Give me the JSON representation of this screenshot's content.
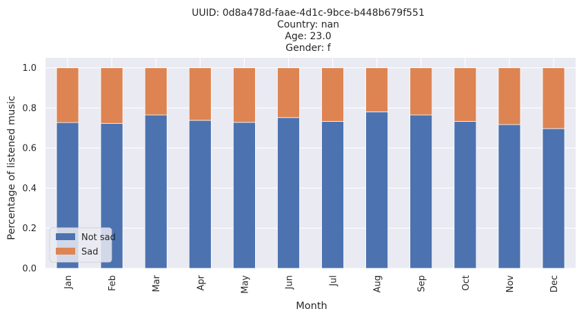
{
  "chart_data": {
    "type": "bar",
    "stacked": true,
    "title_lines": [
      "UUID: 0d8a478d-faae-4d1c-9bce-b448b679f551",
      "Country: nan",
      "Age: 23.0",
      "Gender: f"
    ],
    "xlabel": "Month",
    "ylabel": "Percentage of listened music",
    "categories": [
      "Jan",
      "Feb",
      "Mar",
      "Apr",
      "May",
      "Jun",
      "Jul",
      "Aug",
      "Sep",
      "Oct",
      "Nov",
      "Dec"
    ],
    "series": [
      {
        "name": "Not sad",
        "color": "#4c72b0",
        "values": [
          0.727,
          0.723,
          0.765,
          0.738,
          0.728,
          0.752,
          0.733,
          0.78,
          0.765,
          0.733,
          0.717,
          0.697
        ]
      },
      {
        "name": "Sad",
        "color": "#dd8452",
        "values": [
          0.273,
          0.277,
          0.235,
          0.262,
          0.272,
          0.248,
          0.267,
          0.22,
          0.235,
          0.267,
          0.283,
          0.303
        ]
      }
    ],
    "ylim": [
      0,
      1.05
    ],
    "yticks": [
      "0.0",
      "0.2",
      "0.4",
      "0.6",
      "0.8",
      "1.0"
    ],
    "grid": true,
    "legend_position": "lower-left",
    "background_color": "#eaeaf2",
    "grid_color": "#ffffff"
  }
}
